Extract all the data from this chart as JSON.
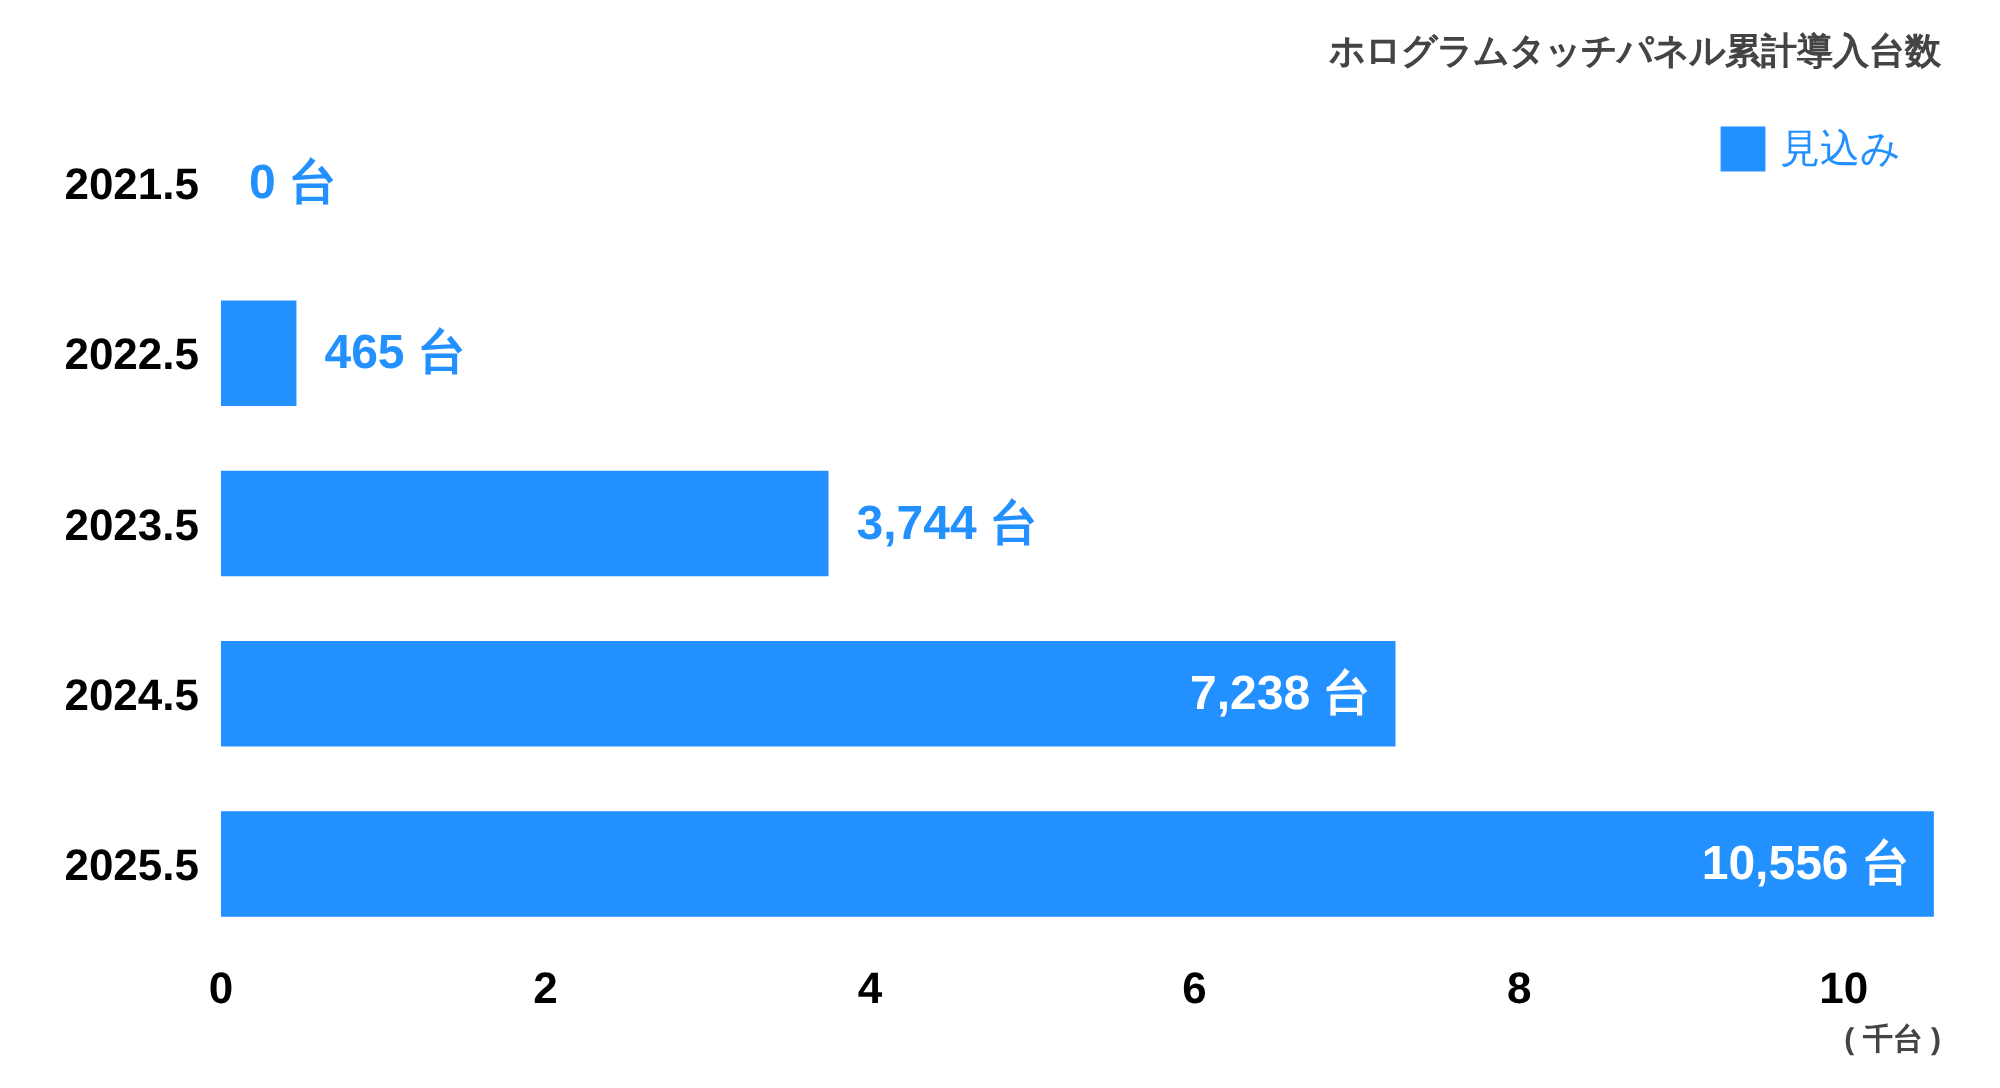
{
  "chart_data": {
    "type": "bar",
    "orientation": "horizontal",
    "title": "ホログラムタッチパネル累計導入台数",
    "xlabel": "( 千台 )",
    "categories": [
      "2021.5",
      "2022.5",
      "2023.5",
      "2024.5",
      "2025.5"
    ],
    "series": [
      {
        "name": "見込み",
        "color": "#2290ff",
        "values": [
          0,
          0.465,
          3.744,
          7.238,
          10.556
        ]
      }
    ],
    "annotations": [
      {
        "text": "0 台",
        "x": 0,
        "y": "2021.5"
      },
      {
        "text": "465 台",
        "x": 0.465,
        "y": "2022.5"
      },
      {
        "text": "3,744 台",
        "x": 3.744,
        "y": "2023.5"
      },
      {
        "text": "7,238 台",
        "x": 7.238,
        "y": "2024.5"
      },
      {
        "text": "10,556 台",
        "x": 10.556,
        "y": "2025.5"
      }
    ],
    "xlim": [
      0,
      10.6
    ],
    "xticks": [
      0,
      2,
      4,
      6,
      8,
      10
    ],
    "grid": false,
    "legend": "top right"
  }
}
